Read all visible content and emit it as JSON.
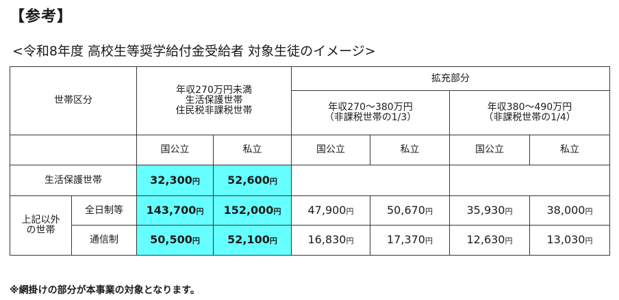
{
  "heading": "【参考】",
  "subtitle": "<令和8年度 高校生等奨学給付金受給者 対象生徒のイメージ>",
  "table": {
    "setai_kubun": "世帯区分",
    "base_group": {
      "line1": "年収270万円未満",
      "line2": "生活保護世帯",
      "line3": "住民税非課税世帯"
    },
    "expansion_label": "拡充部分",
    "band_a": {
      "line1": "年収270～380万円",
      "line2": "（非課税世帯の1/3）"
    },
    "band_b": {
      "line1": "年収380～490万円",
      "line2": "（非課税世帯の1/4）"
    },
    "col_public": "国公立",
    "col_private": "私立",
    "row_welfare": {
      "label": "生活保護世帯",
      "public": "32,300",
      "private": "52,600"
    },
    "other_group_line1": "上記以外",
    "other_group_line2": "の世帯",
    "row_fulltime": {
      "label": "全日制等",
      "public": "143,700",
      "private": "152,000",
      "a_public": "47,900",
      "a_private": "50,670",
      "b_public": "35,930",
      "b_private": "38,000"
    },
    "row_correspondence": {
      "label": "通信制",
      "public": "50,500",
      "private": "52,100",
      "a_public": "16,830",
      "a_private": "17,370",
      "b_public": "12,630",
      "b_private": "13,030"
    },
    "yen": "円",
    "highlight_color": "#66ffff"
  },
  "note": "※網掛けの部分が本事業の対象となります。"
}
